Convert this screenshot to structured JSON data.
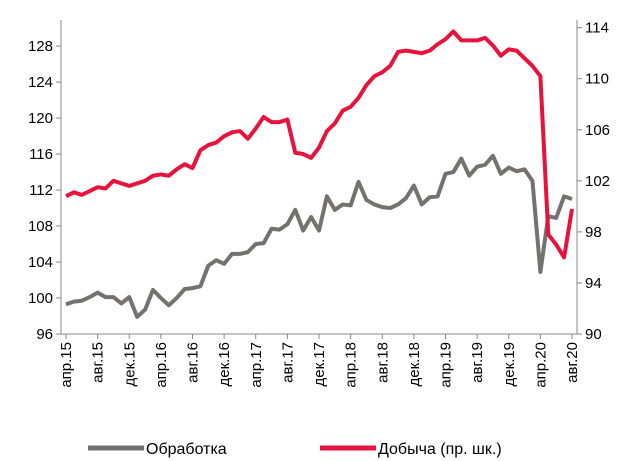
{
  "chart_data": {
    "type": "line",
    "categories": [
      "апр.15",
      null,
      null,
      null,
      "авг.15",
      null,
      null,
      null,
      "дек.15",
      null,
      null,
      null,
      "апр.16",
      null,
      null,
      null,
      "авг.16",
      null,
      null,
      null,
      "дек.16",
      null,
      null,
      null,
      "апр.17",
      null,
      null,
      null,
      "авг.17",
      null,
      null,
      null,
      "дек.17",
      null,
      null,
      null,
      "апр.18",
      null,
      null,
      null,
      "авг.18",
      null,
      null,
      null,
      "дек.18",
      null,
      null,
      null,
      "апр.19",
      null,
      null,
      null,
      "авг.19",
      null,
      null,
      null,
      "дек.19",
      null,
      null,
      null,
      "апр.20",
      null,
      null,
      null,
      "авг.20"
    ],
    "series": [
      {
        "name": "Обработка",
        "color": "#767171",
        "axis": "y",
        "values": [
          99.3,
          99.6,
          99.7,
          100.1,
          100.6,
          100.1,
          100.1,
          99.4,
          100.1,
          97.9,
          98.7,
          100.9,
          100.0,
          99.2,
          100.0,
          101.0,
          101.1,
          101.3,
          103.6,
          104.2,
          103.8,
          104.9,
          104.9,
          105.1,
          106.0,
          106.1,
          107.7,
          107.6,
          108.2,
          109.8,
          107.5,
          109.0,
          107.5,
          111.3,
          109.8,
          110.4,
          110.3,
          112.9,
          110.9,
          110.4,
          110.1,
          110.0,
          110.4,
          111.1,
          112.5,
          110.4,
          111.2,
          111.3,
          113.8,
          114.0,
          115.5,
          113.6,
          114.6,
          114.8,
          115.8,
          113.8,
          114.5,
          114.1,
          114.3,
          113.0,
          102.9,
          109.1,
          108.9,
          111.3,
          111.0
        ]
      },
      {
        "name": "Добыча (пр. шк.)",
        "color": "#e8133c",
        "axis": "y2",
        "values": [
          100.8,
          101.1,
          100.9,
          101.2,
          101.5,
          101.4,
          102.0,
          101.8,
          101.6,
          101.8,
          102.0,
          102.4,
          102.5,
          102.4,
          102.9,
          103.3,
          103.0,
          104.4,
          104.8,
          105.0,
          105.5,
          105.8,
          105.9,
          105.3,
          106.1,
          107.0,
          106.6,
          106.6,
          106.8,
          104.2,
          104.1,
          103.8,
          104.6,
          105.9,
          106.5,
          107.5,
          107.8,
          108.5,
          109.5,
          110.2,
          110.5,
          111.0,
          112.1,
          112.2,
          112.1,
          112.0,
          112.2,
          112.7,
          113.1,
          113.7,
          113.0,
          113.0,
          113.0,
          113.2,
          112.6,
          111.8,
          112.3,
          112.2,
          111.6,
          111.0,
          110.2,
          97.8,
          97.0,
          96.0,
          99.8
        ]
      }
    ],
    "ylim": [
      96,
      130.9
    ],
    "yticks": [
      96,
      100,
      104,
      108,
      112,
      116,
      120,
      124,
      128
    ],
    "y2lim": [
      90,
      114.6
    ],
    "y2ticks": [
      90,
      94,
      98,
      102,
      106,
      110,
      114
    ]
  }
}
